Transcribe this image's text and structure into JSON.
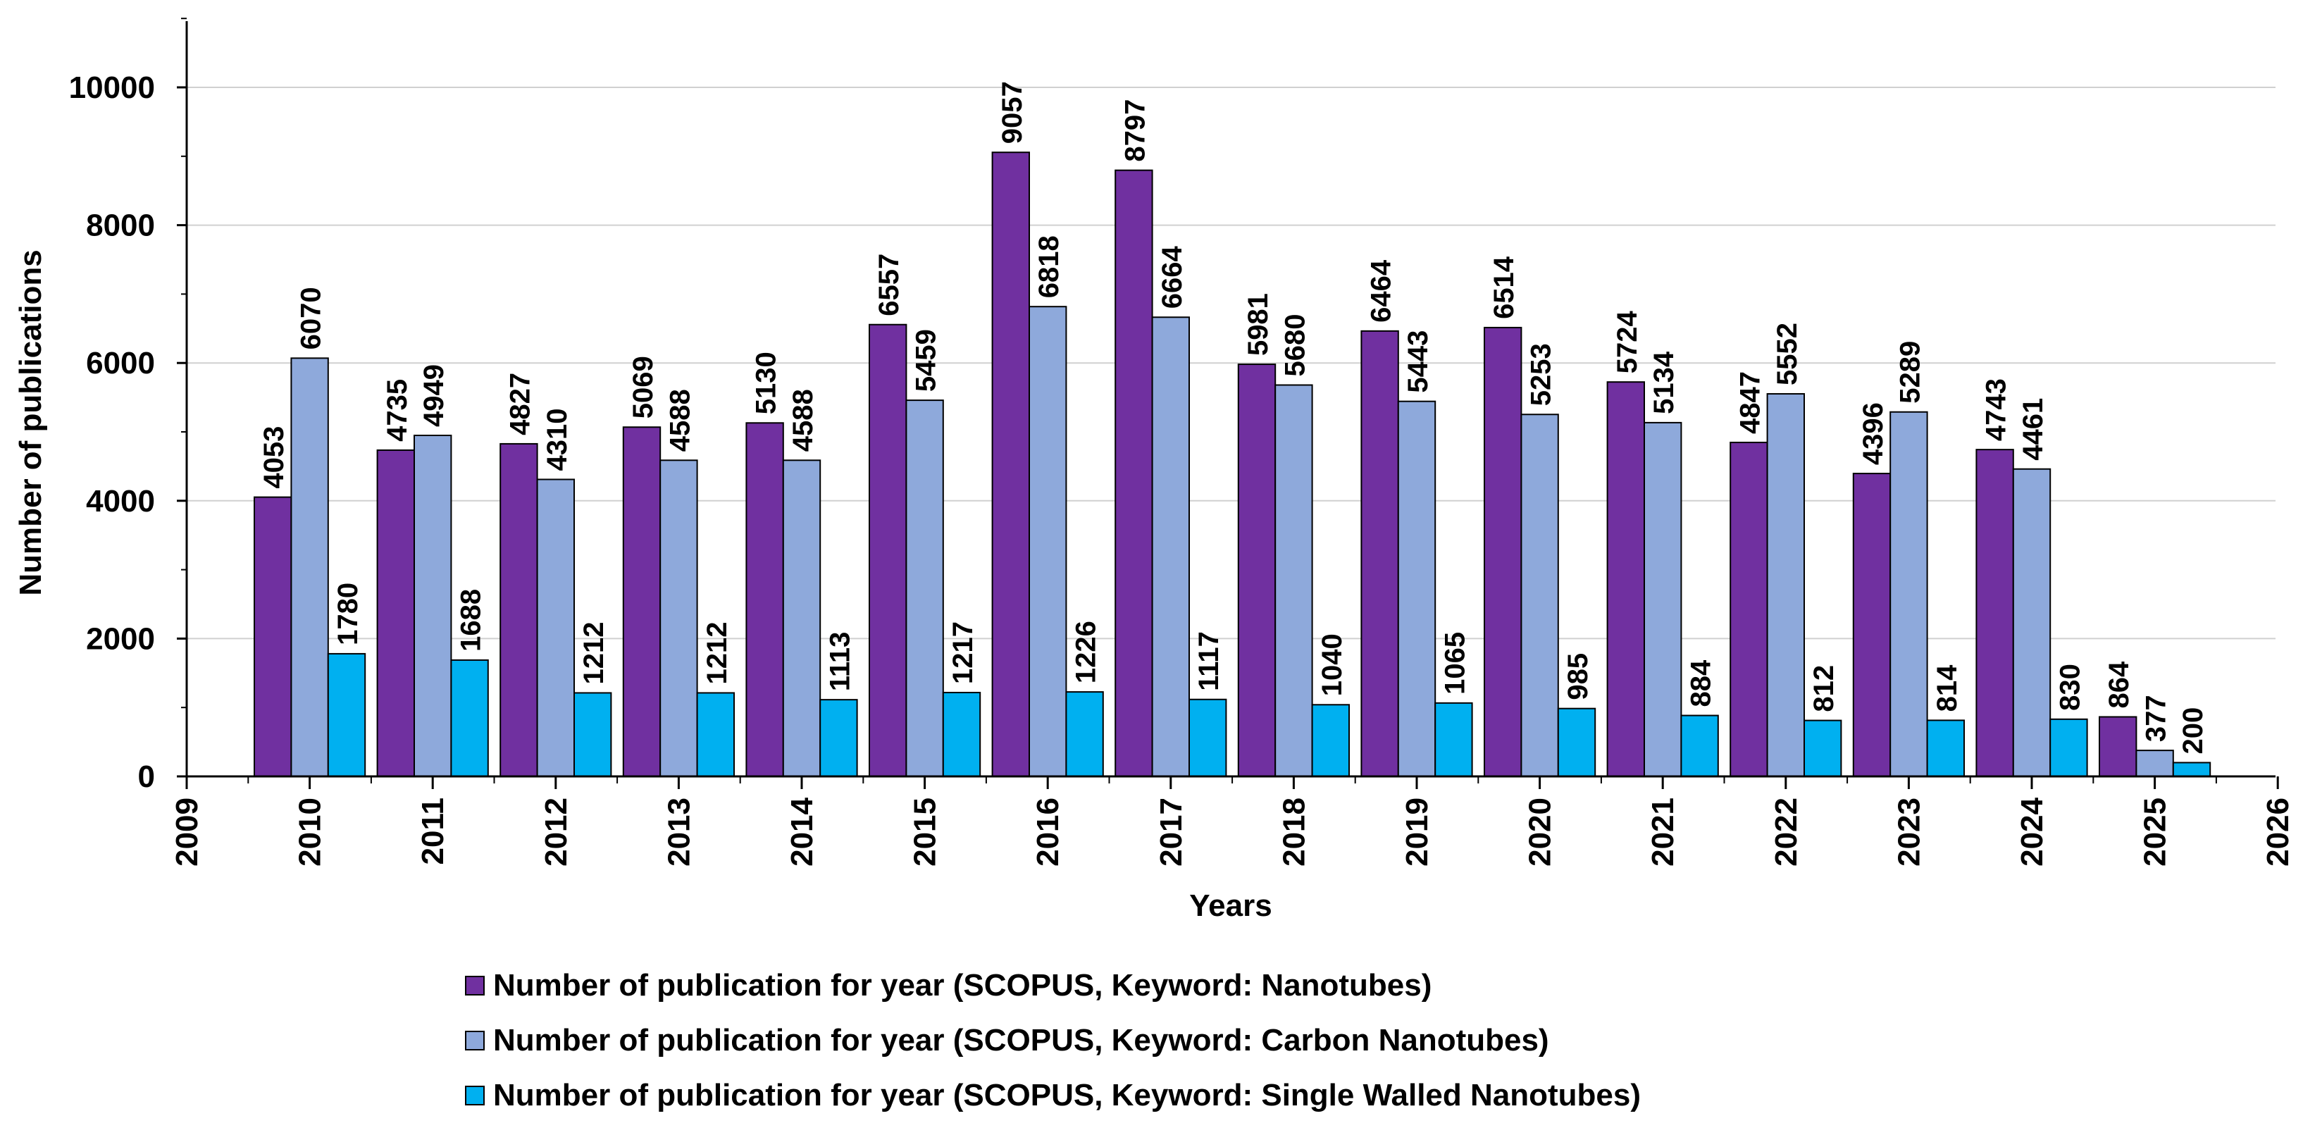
{
  "chart_data": {
    "type": "bar",
    "title": "",
    "xlabel": "Years",
    "ylabel": "Number of publications",
    "ylim": [
      0,
      11000
    ],
    "yticks": [
      0,
      2000,
      4000,
      6000,
      8000,
      10000
    ],
    "xlim": [
      2009,
      2026
    ],
    "xticks": [
      "2009",
      "2010",
      "2011",
      "2012",
      "2013",
      "2014",
      "2015",
      "2016",
      "2017",
      "2018",
      "2019",
      "2020",
      "2021",
      "2022",
      "2023",
      "2024",
      "2025",
      "2026"
    ],
    "grid": true,
    "legend_position": "bottom",
    "categories": [
      "2010",
      "2011",
      "2012",
      "2013",
      "2014",
      "2015",
      "2016",
      "2017",
      "2018",
      "2019",
      "2020",
      "2021",
      "2022",
      "2023",
      "2024",
      "2025"
    ],
    "series": [
      {
        "name": "Number of publication for year (SCOPUS, Keyword: Nanotubes)",
        "color": "#7030A0",
        "values": [
          4053,
          4735,
          4827,
          5069,
          5130,
          6557,
          9057,
          8797,
          5981,
          6464,
          6514,
          5724,
          4847,
          4396,
          4743,
          864
        ]
      },
      {
        "name": "Number of publication for year (SCOPUS, Keyword: Carbon Nanotubes)",
        "color": "#8EA9DB",
        "values": [
          6070,
          4949,
          4310,
          4588,
          4588,
          5459,
          6818,
          6664,
          5680,
          5443,
          5253,
          5134,
          5552,
          5289,
          4461,
          377
        ]
      },
      {
        "name": "Number of publication for year (SCOPUS, Keyword: Single Walled Nanotubes)",
        "color": "#00B0F0",
        "values": [
          1780,
          1688,
          1212,
          1212,
          1113,
          1217,
          1226,
          1117,
          1040,
          1065,
          985,
          884,
          812,
          814,
          830,
          200
        ]
      }
    ]
  }
}
